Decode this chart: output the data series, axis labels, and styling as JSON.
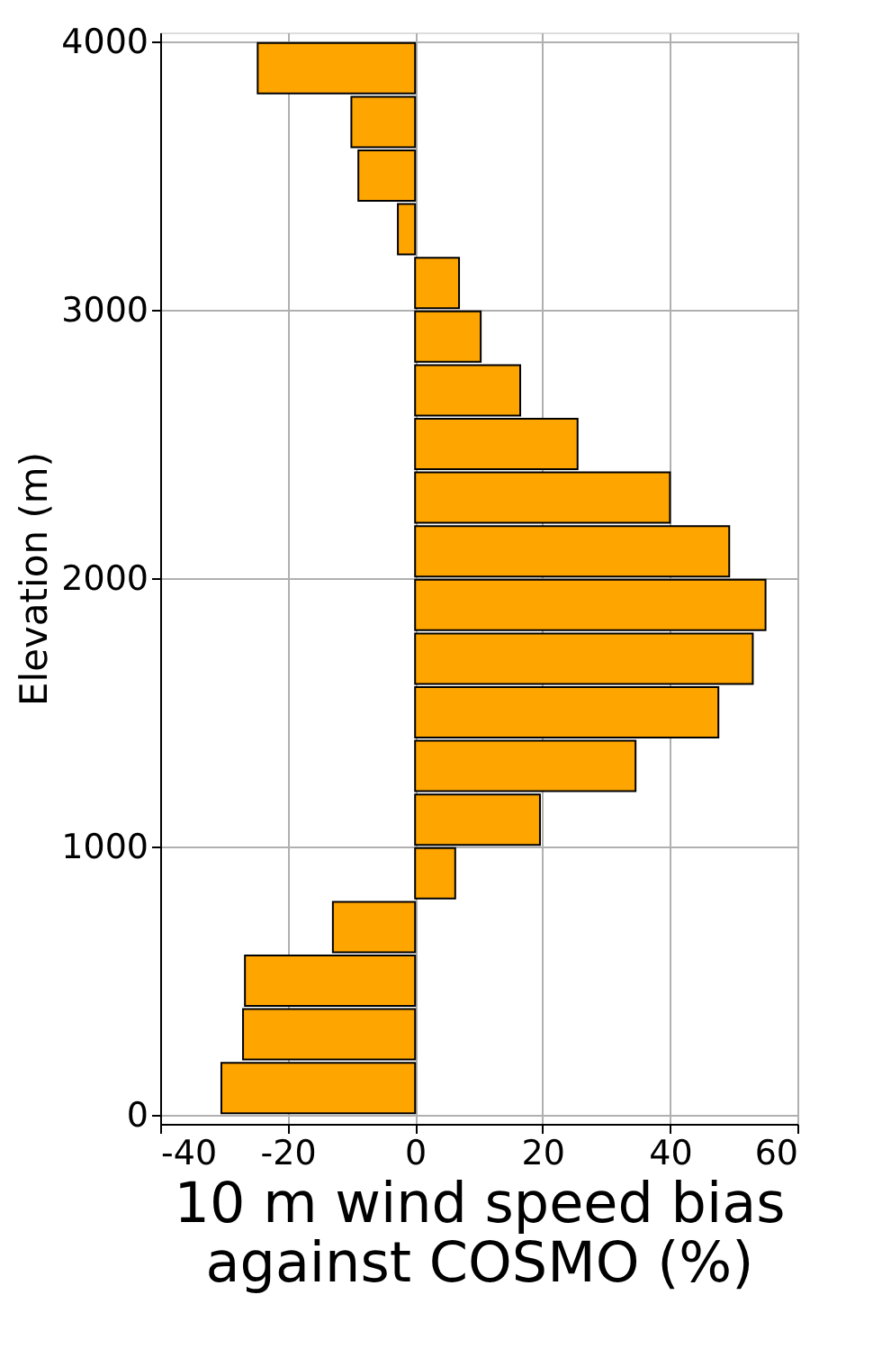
{
  "chart_data": {
    "type": "bar",
    "orientation": "horizontal",
    "xlabel": "10 m wind speed bias\nagainst COSMO (%)",
    "ylabel": "Elevation (m)",
    "x": [
      100,
      300,
      500,
      700,
      900,
      1100,
      1300,
      1500,
      1700,
      1900,
      2100,
      2300,
      2500,
      2700,
      2900,
      3100,
      3300,
      3500,
      3700,
      3900
    ],
    "values": [
      -30.4,
      -27,
      -26.7,
      -12.9,
      6.3,
      19.6,
      34.6,
      47.6,
      53,
      55,
      49.3,
      40,
      25.5,
      16.5,
      10.3,
      6.9,
      -2.7,
      -8.9,
      -10,
      -24.7
    ],
    "color": "#ffa500",
    "xlim": [
      -40,
      60
    ],
    "xticks": [
      -40,
      -20,
      0,
      20,
      40,
      60
    ],
    "ylim": [
      0,
      4000
    ],
    "yticks": [
      0,
      1000,
      2000,
      3000,
      4000
    ],
    "grid": true
  }
}
